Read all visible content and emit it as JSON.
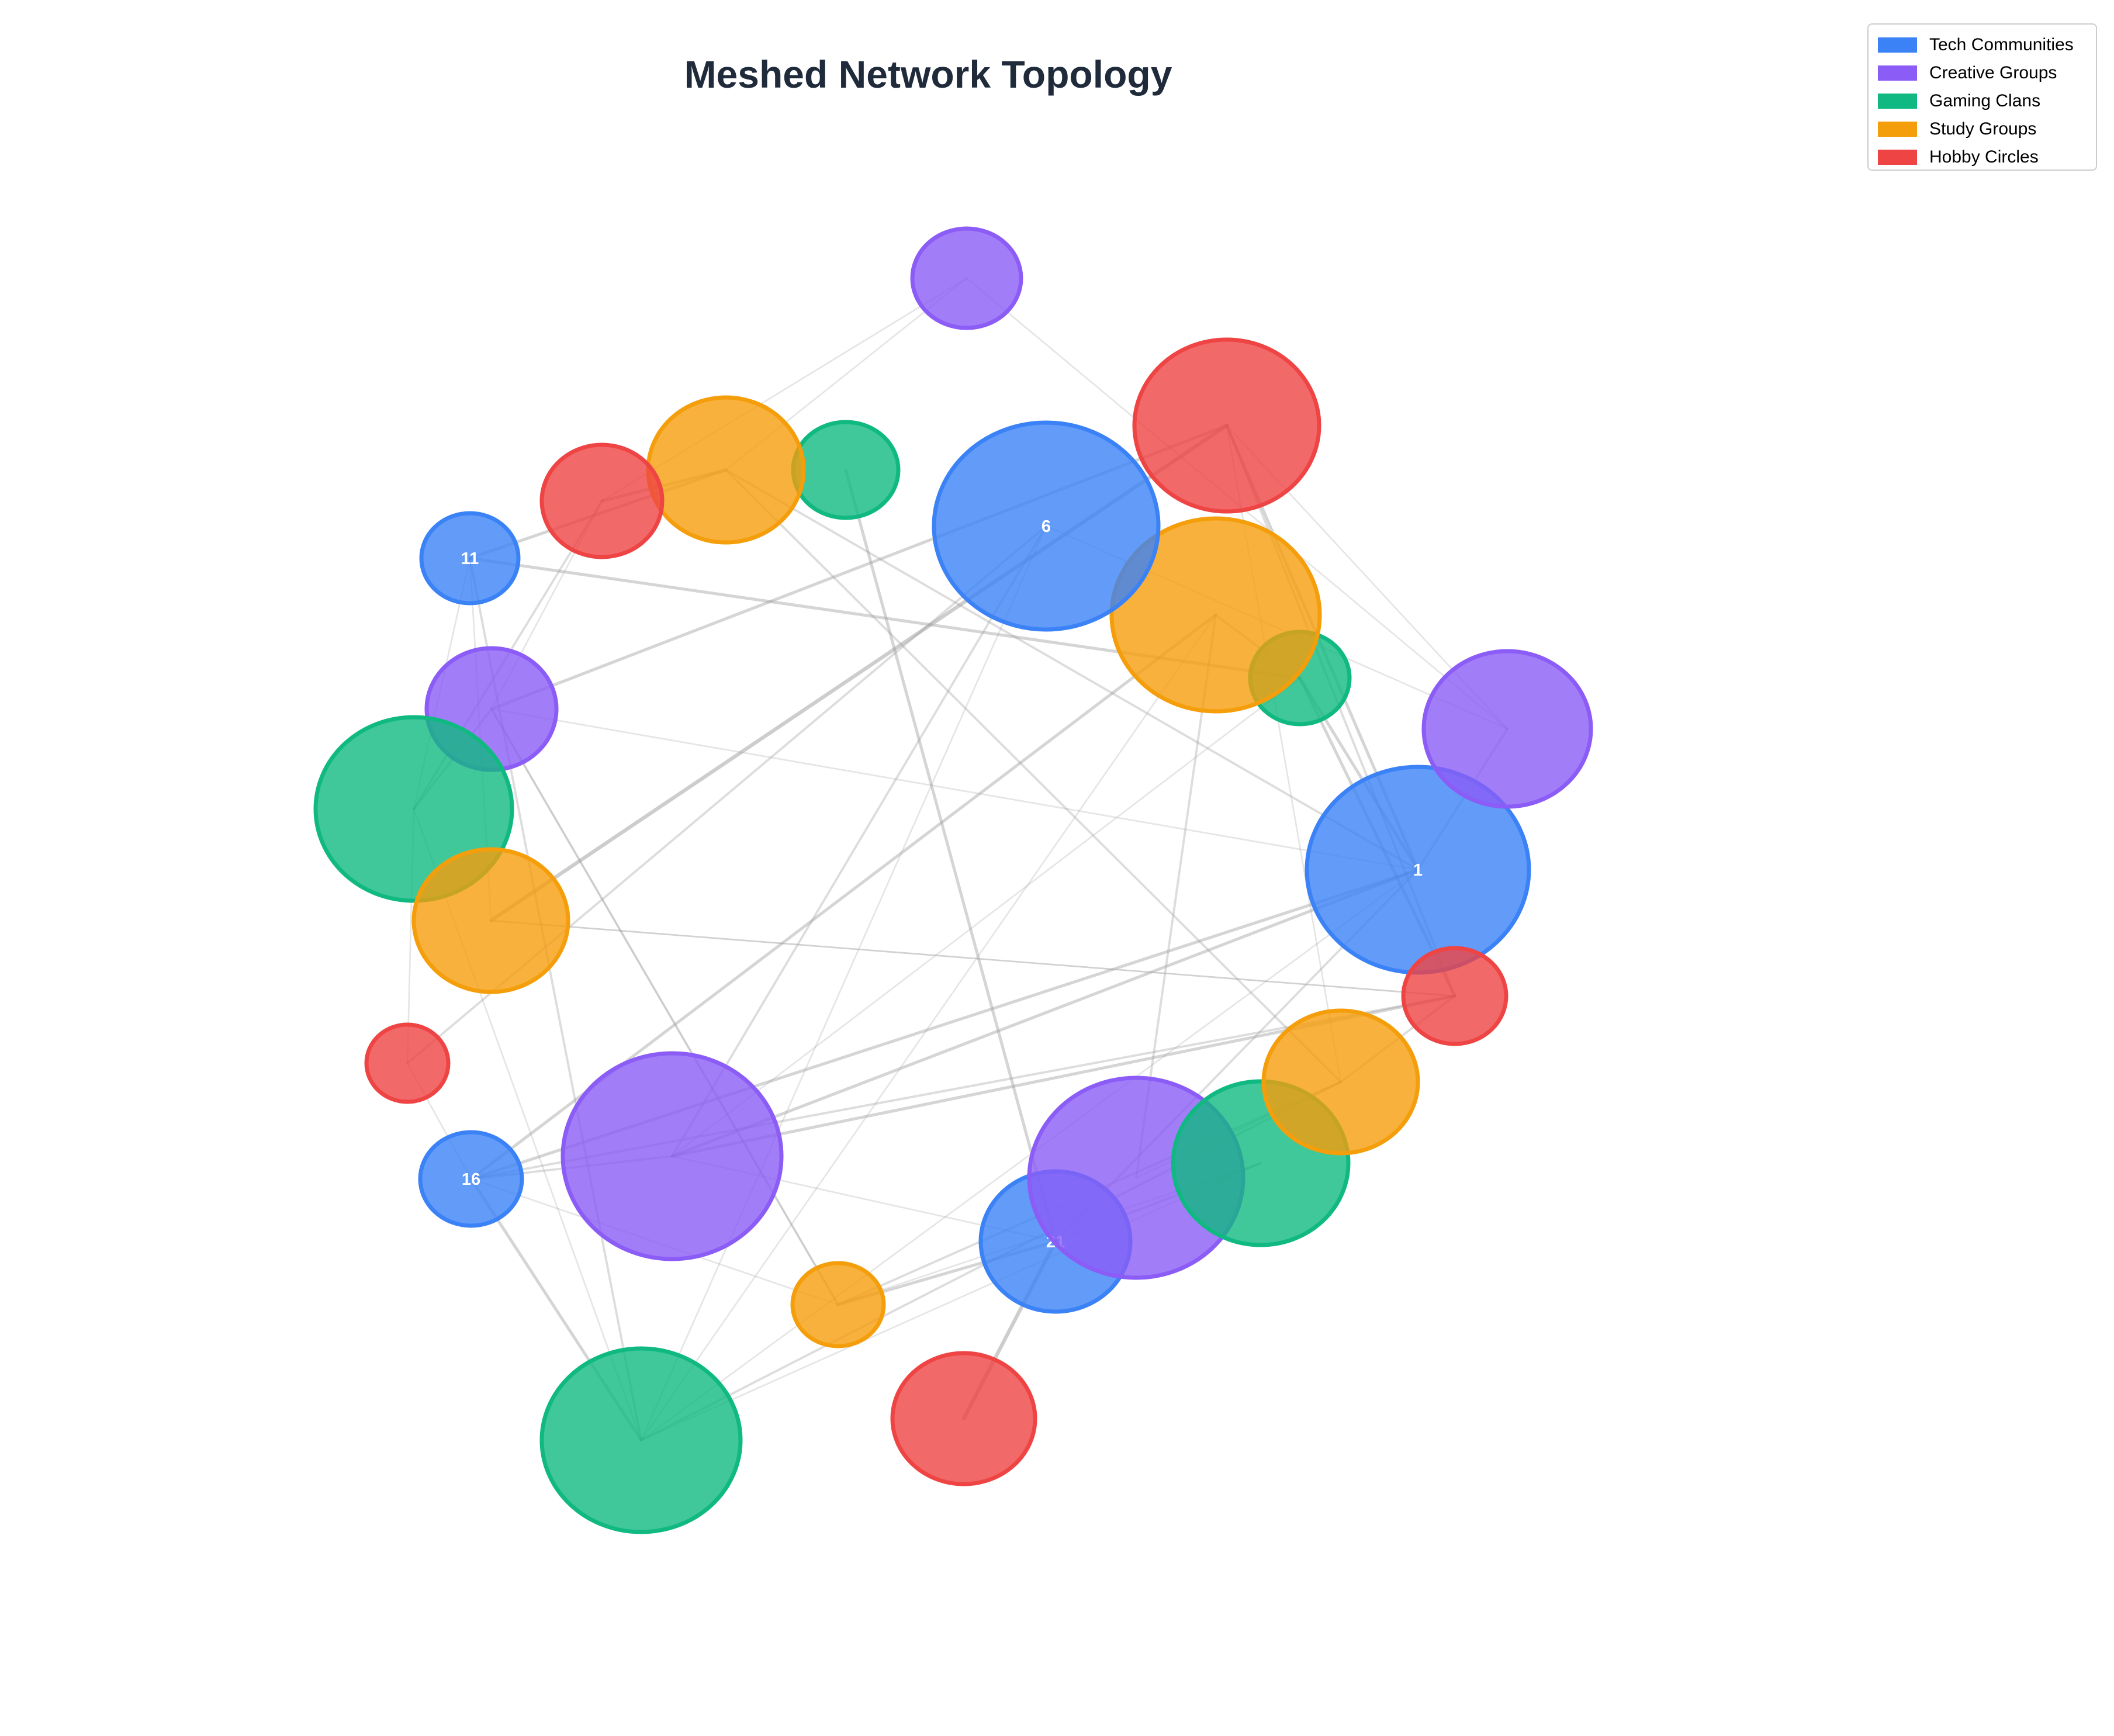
{
  "title": "Meshed Network Topology",
  "legend": {
    "items": [
      {
        "label": "Tech Communities",
        "color": "#3b82f6"
      },
      {
        "label": "Creative Groups",
        "color": "#8b5cf6"
      },
      {
        "label": "Gaming Clans",
        "color": "#10b981"
      },
      {
        "label": "Study Groups",
        "color": "#f59e0b"
      },
      {
        "label": "Hobby Circles",
        "color": "#ef4444"
      }
    ]
  },
  "network": {
    "groups": [
      "Tech Communities",
      "Creative Groups",
      "Gaming Clans",
      "Study Groups",
      "Hobby Circles"
    ],
    "nodes": [
      {
        "id": "1",
        "group": 0,
        "size": 1.6,
        "label": "1"
      },
      {
        "id": "2",
        "group": 1,
        "size": 1.2
      },
      {
        "id": "3",
        "group": 2,
        "size": 0.7
      },
      {
        "id": "4",
        "group": 3,
        "size": 1.5
      },
      {
        "id": "5",
        "group": 4,
        "size": 1.35
      },
      {
        "id": "6",
        "group": 0,
        "size": 1.6,
        "label": "6"
      },
      {
        "id": "7",
        "group": 1,
        "size": 0.8
      },
      {
        "id": "8",
        "group": 2,
        "size": 0.75
      },
      {
        "id": "9",
        "group": 3,
        "size": 1.1
      },
      {
        "id": "10",
        "group": 4,
        "size": 0.85
      },
      {
        "id": "11",
        "group": 0,
        "size": 0.7,
        "label": "11"
      },
      {
        "id": "12",
        "group": 1,
        "size": 0.95
      },
      {
        "id": "13",
        "group": 2,
        "size": 1.4
      },
      {
        "id": "14",
        "group": 3,
        "size": 1.1
      },
      {
        "id": "15",
        "group": 4,
        "size": 0.6
      },
      {
        "id": "16",
        "group": 0,
        "size": 0.75,
        "label": "16"
      },
      {
        "id": "17",
        "group": 1,
        "size": 1.6
      },
      {
        "id": "18",
        "group": 2,
        "size": 1.45
      },
      {
        "id": "19",
        "group": 3,
        "size": 0.65
      },
      {
        "id": "20",
        "group": 4,
        "size": 1.05
      },
      {
        "id": "21",
        "group": 0,
        "size": 1.1,
        "label": "21"
      },
      {
        "id": "22",
        "group": 1,
        "size": 1.55
      },
      {
        "id": "23",
        "group": 2,
        "size": 1.25
      },
      {
        "id": "24",
        "group": 3,
        "size": 1.1
      },
      {
        "id": "25",
        "group": 4,
        "size": 0.75
      }
    ],
    "edges": [
      {
        "source": "11",
        "target": "9",
        "weight": 3
      },
      {
        "source": "11",
        "target": "3",
        "weight": 3
      },
      {
        "source": "11",
        "target": "18",
        "weight": 2
      },
      {
        "source": "11",
        "target": "14",
        "weight": 1
      },
      {
        "source": "10",
        "target": "13",
        "weight": 2
      },
      {
        "source": "10",
        "target": "9",
        "weight": 3
      },
      {
        "source": "9",
        "target": "7",
        "weight": 1
      },
      {
        "source": "9",
        "target": "1",
        "weight": 2
      },
      {
        "source": "9",
        "target": "24",
        "weight": 2
      },
      {
        "source": "7",
        "target": "2",
        "weight": 1
      },
      {
        "source": "7",
        "target": "10",
        "weight": 1
      },
      {
        "source": "8",
        "target": "21",
        "weight": 3
      },
      {
        "source": "12",
        "target": "5",
        "weight": 3
      },
      {
        "source": "12",
        "target": "19",
        "weight": 2
      },
      {
        "source": "12",
        "target": "1",
        "weight": 1
      },
      {
        "source": "14",
        "target": "5",
        "weight": 4
      },
      {
        "source": "14",
        "target": "25",
        "weight": 1
      },
      {
        "source": "6",
        "target": "15",
        "weight": 2
      },
      {
        "source": "6",
        "target": "17",
        "weight": 2
      },
      {
        "source": "6",
        "target": "2",
        "weight": 1
      },
      {
        "source": "6",
        "target": "18",
        "weight": 1
      },
      {
        "source": "5",
        "target": "25",
        "weight": 2
      },
      {
        "source": "5",
        "target": "24",
        "weight": 1
      },
      {
        "source": "5",
        "target": "1",
        "weight": 3
      },
      {
        "source": "5",
        "target": "2",
        "weight": 1
      },
      {
        "source": "4",
        "target": "16",
        "weight": 3
      },
      {
        "source": "4",
        "target": "22",
        "weight": 2
      },
      {
        "source": "4",
        "target": "3",
        "weight": 2
      },
      {
        "source": "4",
        "target": "18",
        "weight": 1
      },
      {
        "source": "3",
        "target": "1",
        "weight": 3
      },
      {
        "source": "3",
        "target": "25",
        "weight": 3
      },
      {
        "source": "3",
        "target": "17",
        "weight": 1
      },
      {
        "source": "2",
        "target": "1",
        "weight": 2
      },
      {
        "source": "1",
        "target": "16",
        "weight": 3
      },
      {
        "source": "1",
        "target": "17",
        "weight": 3
      },
      {
        "source": "1",
        "target": "21",
        "weight": 2
      },
      {
        "source": "1",
        "target": "18",
        "weight": 1
      },
      {
        "source": "25",
        "target": "24",
        "weight": 2
      },
      {
        "source": "25",
        "target": "17",
        "weight": 3
      },
      {
        "source": "25",
        "target": "16",
        "weight": 2
      },
      {
        "source": "25",
        "target": "14",
        "weight": 1
      },
      {
        "source": "24",
        "target": "18",
        "weight": 2
      },
      {
        "source": "24",
        "target": "19",
        "weight": 2
      },
      {
        "source": "24",
        "target": "22",
        "weight": 1
      },
      {
        "source": "23",
        "target": "21",
        "weight": 2
      },
      {
        "source": "23",
        "target": "18",
        "weight": 1
      },
      {
        "source": "23",
        "target": "19",
        "weight": 1
      },
      {
        "source": "21",
        "target": "19",
        "weight": 3
      },
      {
        "source": "21",
        "target": "20",
        "weight": 4
      },
      {
        "source": "21",
        "target": "17",
        "weight": 1
      },
      {
        "source": "19",
        "target": "12",
        "weight": 1
      },
      {
        "source": "19",
        "target": "16",
        "weight": 1
      },
      {
        "source": "18",
        "target": "16",
        "weight": 3
      },
      {
        "source": "18",
        "target": "13",
        "weight": 1
      },
      {
        "source": "17",
        "target": "16",
        "weight": 2
      },
      {
        "source": "16",
        "target": "15",
        "weight": 1
      },
      {
        "source": "15",
        "target": "13",
        "weight": 1
      },
      {
        "source": "13",
        "target": "12",
        "weight": 2
      },
      {
        "source": "13",
        "target": "11",
        "weight": 1
      },
      {
        "source": "12",
        "target": "10",
        "weight": 1
      }
    ]
  }
}
